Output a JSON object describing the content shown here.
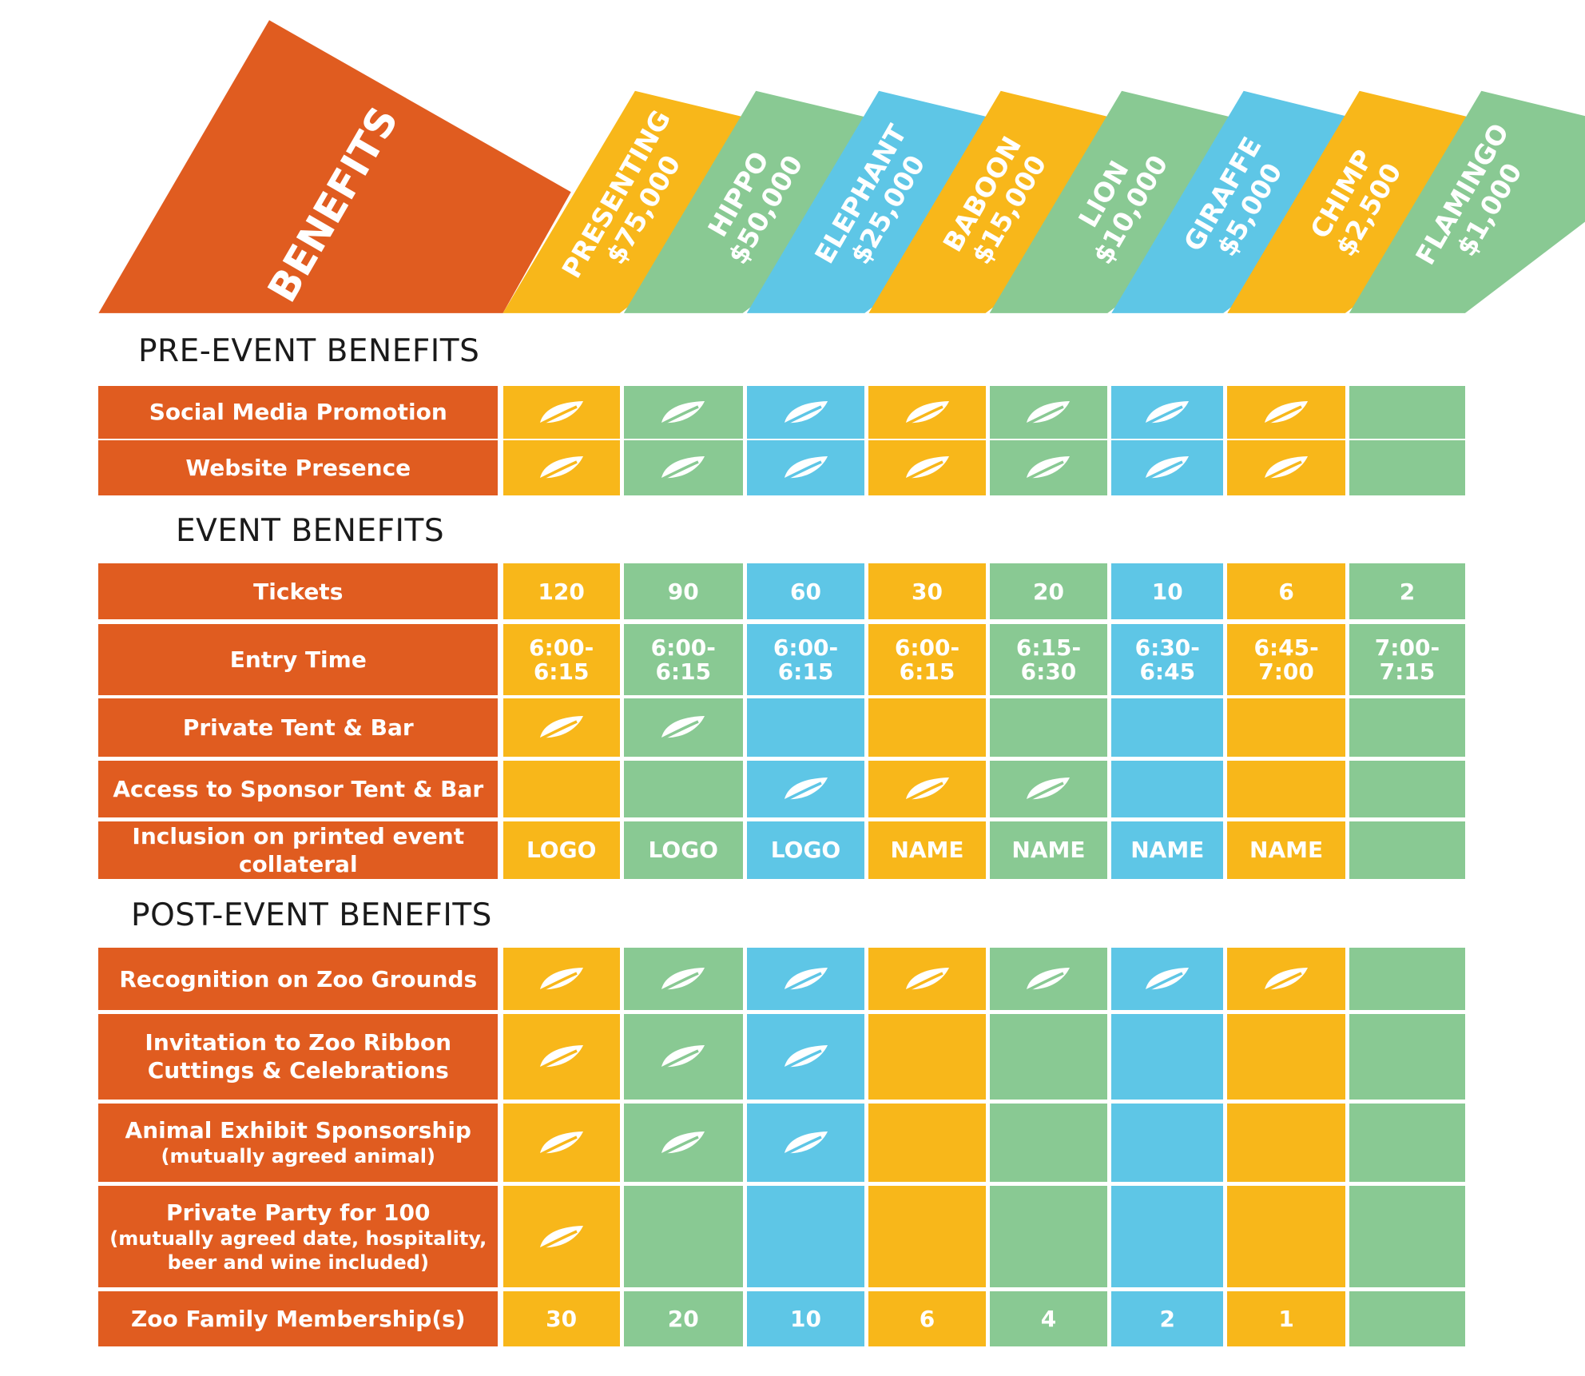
{
  "header": {
    "benefits_label": "BENEFITS",
    "tiers": [
      {
        "name": "PRESENTING",
        "amount": "$75,000",
        "color": "#f8b71a"
      },
      {
        "name": "HIPPO",
        "amount": "$50,000",
        "color": "#89c993"
      },
      {
        "name": "ELEPHANT",
        "amount": "$25,000",
        "color": "#5ec6e6"
      },
      {
        "name": "BABOON",
        "amount": "$15,000",
        "color": "#f8b71a"
      },
      {
        "name": "LION",
        "amount": "$10,000",
        "color": "#89c993"
      },
      {
        "name": "GIRAFFE",
        "amount": "$5,000",
        "color": "#5ec6e6"
      },
      {
        "name": "CHIMP",
        "amount": "$2,500",
        "color": "#f8b71a"
      },
      {
        "name": "FLAMINGO",
        "amount": "$1,000",
        "color": "#89c993"
      }
    ]
  },
  "colors": {
    "benefit_bg": "#e05c20",
    "text": "#ffffff",
    "heading": "#1a1a1a"
  },
  "icon": "leaf-checkmark-icon",
  "sections": [
    {
      "title": "PRE-EVENT BENEFITS",
      "rows": [
        {
          "label": "Social Media Promotion",
          "cells": [
            "leaf",
            "leaf",
            "leaf",
            "leaf",
            "leaf",
            "leaf",
            "leaf",
            ""
          ]
        },
        {
          "label": "Website Presence",
          "cells": [
            "leaf",
            "leaf",
            "leaf",
            "leaf",
            "leaf",
            "leaf",
            "leaf",
            ""
          ]
        }
      ]
    },
    {
      "title": "EVENT BENEFITS",
      "rows": [
        {
          "label": "Tickets",
          "cells": [
            "120",
            "90",
            "60",
            "30",
            "20",
            "10",
            "6",
            "2"
          ]
        },
        {
          "label": "Entry Time",
          "cells": [
            "6:00-\n6:15",
            "6:00-\n6:15",
            "6:00-\n6:15",
            "6:00-\n6:15",
            "6:15-\n6:30",
            "6:30-\n6:45",
            "6:45-\n7:00",
            "7:00-\n7:15"
          ]
        },
        {
          "label": "Private Tent & Bar",
          "cells": [
            "leaf",
            "leaf",
            "",
            "",
            "",
            "",
            "",
            ""
          ]
        },
        {
          "label": "Access to Sponsor Tent & Bar",
          "cells": [
            "",
            "",
            "leaf",
            "leaf",
            "leaf",
            "",
            "",
            ""
          ]
        },
        {
          "label": "Inclusion on printed event collateral",
          "cells": [
            "LOGO",
            "LOGO",
            "LOGO",
            "NAME",
            "NAME",
            "NAME",
            "NAME",
            ""
          ]
        }
      ]
    },
    {
      "title": "POST-EVENT BENEFITS",
      "rows": [
        {
          "label": "Recognition on Zoo Grounds",
          "cells": [
            "leaf",
            "leaf",
            "leaf",
            "leaf",
            "leaf",
            "leaf",
            "leaf",
            ""
          ]
        },
        {
          "label": "Invitation to Zoo Ribbon\nCuttings & Celebrations",
          "cells": [
            "leaf",
            "leaf",
            "leaf",
            "",
            "",
            "",
            "",
            ""
          ]
        },
        {
          "label": "Animal Exhibit Sponsorship",
          "sublabel": "(mutually agreed animal)",
          "cells": [
            "leaf",
            "leaf",
            "leaf",
            "",
            "",
            "",
            "",
            ""
          ]
        },
        {
          "label": "Private Party for 100",
          "sublabel": "(mutually agreed date, hospitality,\nbeer and wine included)",
          "cells": [
            "leaf",
            "",
            "",
            "",
            "",
            "",
            "",
            ""
          ]
        },
        {
          "label": "Zoo Family Membership(s)",
          "cells": [
            "30",
            "20",
            "10",
            "6",
            "4",
            "2",
            "1",
            ""
          ]
        }
      ]
    }
  ]
}
